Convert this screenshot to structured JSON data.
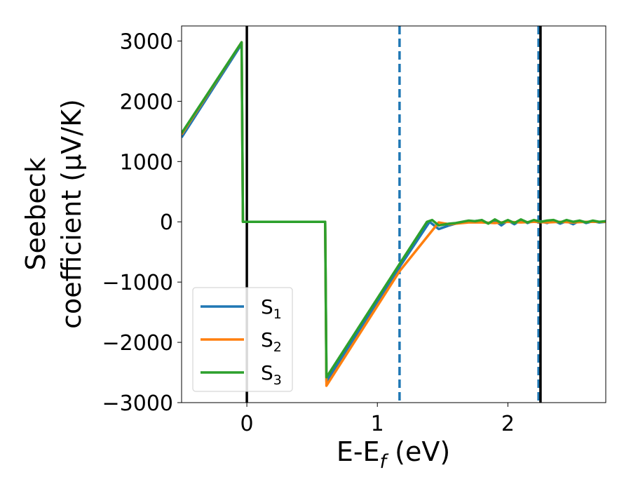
{
  "chart_data": {
    "type": "line",
    "xlabel": "E-E",
    "xlabel_sub": "f",
    "xlabel_unit": " (eV)",
    "ylabel_line1": "Seebeck",
    "ylabel_line2": "coefficient  (μV/K)",
    "xlim": [
      -0.5,
      2.75
    ],
    "ylim": [
      -3000,
      3250
    ],
    "xticks": [
      0,
      1,
      2
    ],
    "xtick_labels": [
      "0",
      "1",
      "2"
    ],
    "yticks": [
      -3000,
      -2000,
      -1000,
      0,
      1000,
      2000,
      3000
    ],
    "ytick_labels": [
      "−3000",
      "−2000",
      "−1000",
      "0",
      "1000",
      "2000",
      "3000"
    ],
    "grid": false,
    "legend_position": "lower-left",
    "vlines": [
      {
        "x": 0.0,
        "color": "#000000",
        "style": "solid"
      },
      {
        "x": 1.17,
        "color": "#1f77b4",
        "style": "dashed"
      },
      {
        "x": 2.235,
        "color": "#1f77b4",
        "style": "dashed"
      },
      {
        "x": 2.25,
        "color": "#000000",
        "style": "solid"
      }
    ],
    "series": [
      {
        "name": "S",
        "sub": "1",
        "color": "#1f77b4",
        "x": [
          -0.5,
          -0.04,
          -0.03,
          0.6,
          0.61,
          1.17,
          1.4,
          1.47,
          1.55,
          1.6,
          1.7,
          1.78,
          1.85,
          1.9,
          1.95,
          2.0,
          2.05,
          2.1,
          2.15,
          2.2,
          2.25,
          2.3,
          2.35,
          2.4,
          2.45,
          2.5,
          2.55,
          2.6,
          2.65,
          2.7,
          2.75
        ],
        "y": [
          1400,
          2950,
          0,
          0,
          -2650,
          -750,
          0,
          -120,
          -60,
          -30,
          0,
          20,
          -20,
          20,
          -60,
          20,
          -40,
          30,
          -20,
          20,
          10,
          -20,
          20,
          -30,
          10,
          -40,
          20,
          -20,
          10,
          -10,
          0
        ]
      },
      {
        "name": "S",
        "sub": "2",
        "color": "#ff7f0e",
        "x": [
          -0.5,
          -0.04,
          -0.03,
          0.6,
          0.61,
          1.17,
          1.47,
          1.55,
          1.6,
          1.7,
          1.8,
          1.9,
          2.0,
          2.1,
          2.2,
          2.3,
          2.4,
          2.5,
          2.6,
          2.75
        ],
        "y": [
          1450,
          2980,
          0,
          0,
          -2720,
          -820,
          -10,
          -40,
          -30,
          -10,
          -10,
          -20,
          0,
          -10,
          0,
          -10,
          0,
          -10,
          0,
          0
        ]
      },
      {
        "name": "S",
        "sub": "3",
        "color": "#2ca02c",
        "x": [
          -0.5,
          -0.04,
          -0.03,
          0.6,
          0.61,
          1.17,
          1.38,
          1.42,
          1.47,
          1.55,
          1.6,
          1.7,
          1.75,
          1.8,
          1.85,
          1.9,
          1.95,
          2.0,
          2.05,
          2.1,
          2.15,
          2.2,
          2.25,
          2.3,
          2.35,
          2.4,
          2.45,
          2.5,
          2.55,
          2.6,
          2.65,
          2.7,
          2.75
        ],
        "y": [
          1470,
          2980,
          0,
          0,
          -2580,
          -700,
          0,
          30,
          -60,
          -30,
          -20,
          20,
          10,
          30,
          -30,
          40,
          -20,
          30,
          -20,
          40,
          -10,
          30,
          0,
          20,
          30,
          -10,
          30,
          0,
          20,
          -10,
          20,
          0,
          10
        ]
      }
    ]
  }
}
